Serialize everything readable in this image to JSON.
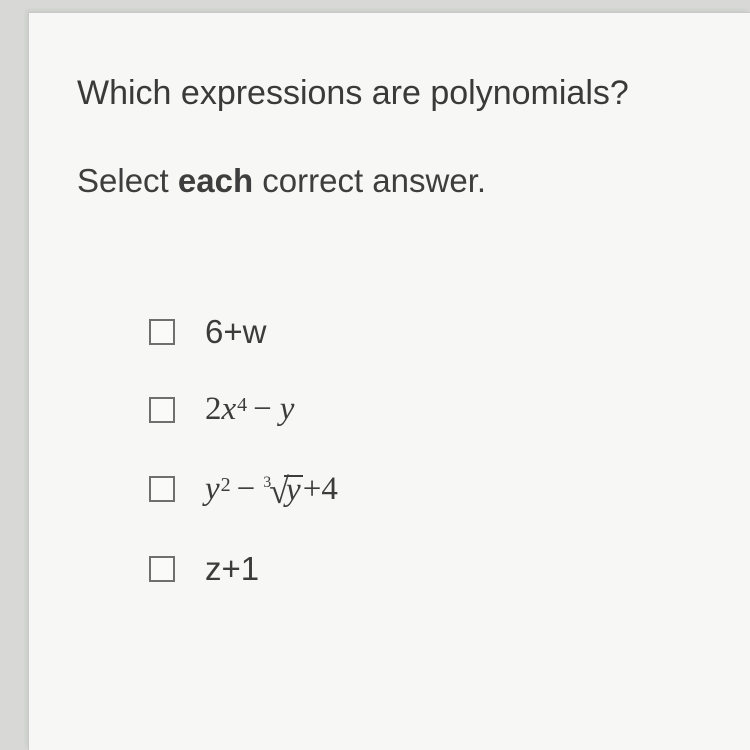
{
  "card": {
    "background_color": "#f7f7f5",
    "border_color": "#c9c9c6"
  },
  "question": {
    "text": "Which expressions are polynomials?",
    "fontsize": 34,
    "color": "#3a3a3a"
  },
  "instruction": {
    "prefix": "Select ",
    "bold": "each",
    "suffix": " correct answer.",
    "fontsize": 33
  },
  "checkbox_style": {
    "size": 26,
    "border_color": "#6f6f6f",
    "background": "#fafaf8"
  },
  "options": [
    {
      "id": "opt-1",
      "checked": false,
      "parts": {
        "coef": "6",
        "op": " + ",
        "var": "w"
      },
      "font": "sans"
    },
    {
      "id": "opt-2",
      "checked": false,
      "parts": {
        "coef": "2",
        "var1": "x",
        "exp1": "4",
        "op": " − ",
        "var2": "y"
      },
      "font": "serif"
    },
    {
      "id": "opt-3",
      "checked": false,
      "parts": {
        "var1": "y",
        "exp1": "2",
        "op1": " − ",
        "root_index": "3",
        "radicand": "y",
        "op2": " + ",
        "const": "4"
      },
      "font": "serif"
    },
    {
      "id": "opt-4",
      "checked": false,
      "parts": {
        "var": "z",
        "op": " + ",
        "const": "1"
      },
      "font": "sans"
    }
  ]
}
